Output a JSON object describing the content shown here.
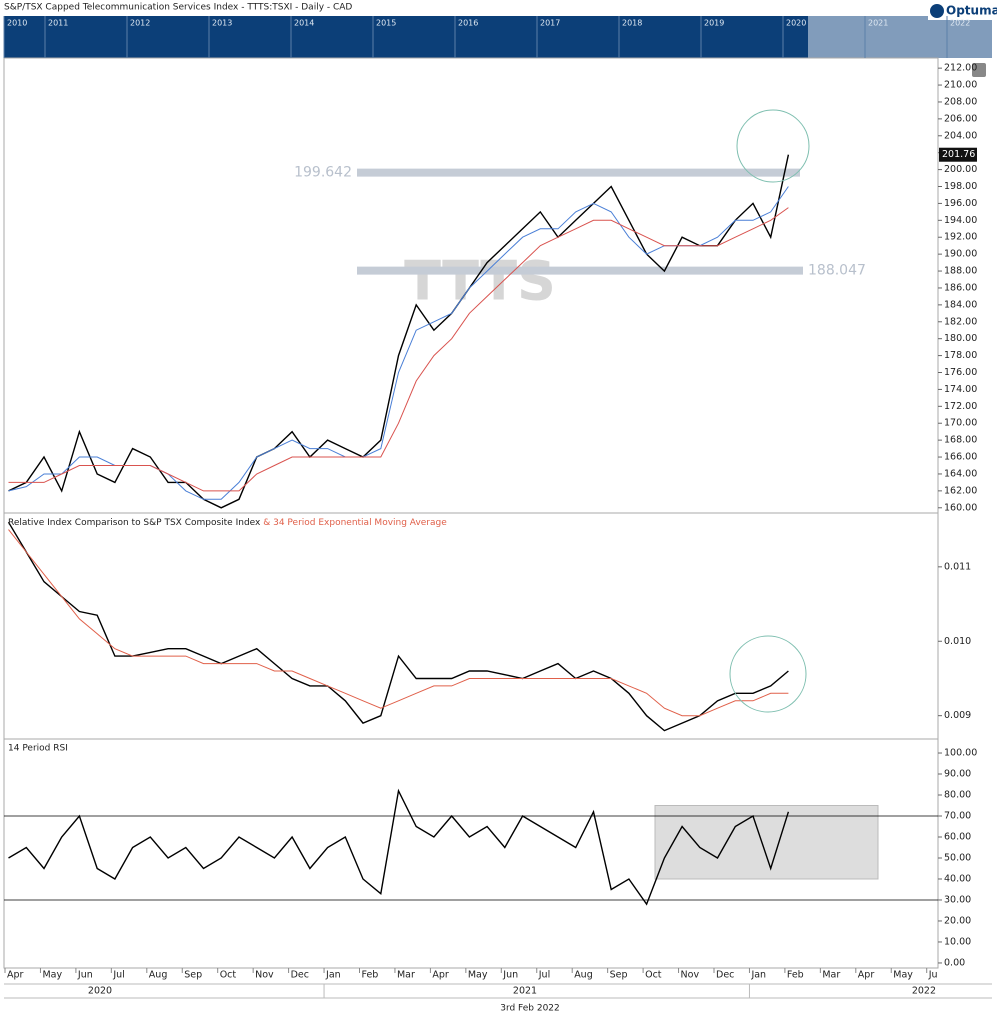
{
  "header": {
    "title": "S&P/TSX Capped Telecommunication Services Index  - TTTS:TSXI - Daily - CAD",
    "brand": "Optuma"
  },
  "navigator": {
    "years": [
      "2010",
      "2011",
      "2012",
      "2013",
      "2014",
      "2015",
      "2016",
      "2017",
      "2018",
      "2019",
      "2020",
      "2021",
      "2022"
    ]
  },
  "time_axis": {
    "months": [
      "Apr",
      "May",
      "Jun",
      "Jul",
      "Aug",
      "Sep",
      "Oct",
      "Nov",
      "Dec",
      "Jan",
      "Feb",
      "Mar",
      "Apr",
      "May",
      "Jun",
      "Jul",
      "Aug",
      "Sep",
      "Oct",
      "Nov",
      "Dec",
      "Jan",
      "Feb",
      "Mar",
      "Apr",
      "May",
      "Ju"
    ],
    "years": [
      "2020",
      "2021",
      "2022"
    ],
    "date": "3rd Feb 2022"
  },
  "chart_data": [
    {
      "type": "line",
      "watermark": "TTTS",
      "ylim": [
        159.5,
        213.2
      ],
      "yticks": [
        {
          "value": 160,
          "label": "160.00"
        },
        {
          "value": 162,
          "label": "162.00"
        },
        {
          "value": 164,
          "label": "164.00"
        },
        {
          "value": 166,
          "label": "166.00"
        },
        {
          "value": 168,
          "label": "168.00"
        },
        {
          "value": 170,
          "label": "170.00"
        },
        {
          "value": 172,
          "label": "172.00"
        },
        {
          "value": 174,
          "label": "174.00"
        },
        {
          "value": 176,
          "label": "176.00"
        },
        {
          "value": 178,
          "label": "178.00"
        },
        {
          "value": 180,
          "label": "180.00"
        },
        {
          "value": 182,
          "label": "182.00"
        },
        {
          "value": 184,
          "label": "184.00"
        },
        {
          "value": 186,
          "label": "186.00"
        },
        {
          "value": 188,
          "label": "188.00"
        },
        {
          "value": 190,
          "label": "190.00"
        },
        {
          "value": 192,
          "label": "192.00"
        },
        {
          "value": 194,
          "label": "194.00"
        },
        {
          "value": 196,
          "label": "196.00"
        },
        {
          "value": 198,
          "label": "198.00"
        },
        {
          "value": 200,
          "label": "200.00"
        },
        {
          "value": 202,
          "label": "202.00"
        },
        {
          "value": 204,
          "label": "204.00"
        },
        {
          "value": 206,
          "label": "206.00"
        },
        {
          "value": 208,
          "label": "208.00"
        },
        {
          "value": 210,
          "label": "210.00"
        },
        {
          "value": 212,
          "label": "212.00"
        }
      ],
      "levels": [
        199.642,
        188.047
      ],
      "series": [
        {
          "color": "#000000",
          "values": [
            162,
            163,
            166,
            162,
            169,
            164,
            163,
            167,
            166,
            163,
            163,
            161,
            160,
            161,
            166,
            167,
            169,
            166,
            168,
            167,
            166,
            168,
            178,
            184,
            181,
            183,
            186,
            189,
            191,
            193,
            195,
            192,
            194,
            196,
            198,
            194,
            190,
            188,
            192,
            191,
            191,
            194,
            196,
            192,
            201.76
          ]
        },
        {
          "color": "#4a7fd6",
          "values": [
            162,
            162.5,
            164,
            164,
            166,
            166,
            165,
            165,
            165,
            164,
            162,
            161,
            161,
            163,
            166,
            167,
            168,
            167,
            167,
            166,
            166,
            167,
            176,
            181,
            182,
            183,
            186,
            188,
            190,
            192,
            193,
            193,
            195,
            196,
            195,
            192,
            190,
            191,
            191,
            191,
            192,
            194,
            194,
            195,
            198
          ]
        },
        {
          "color": "#d9534f",
          "values": [
            163,
            163,
            163,
            164,
            165,
            165,
            165,
            165,
            165,
            164,
            163,
            162,
            162,
            162,
            164,
            165,
            166,
            166,
            166,
            166,
            166,
            166,
            170,
            175,
            178,
            180,
            183,
            185,
            187,
            189,
            191,
            192,
            193,
            194,
            194,
            193,
            192,
            191,
            191,
            191,
            191,
            192,
            193,
            194,
            195.5
          ]
        }
      ]
    },
    {
      "type": "line",
      "ylim": [
        0.0087,
        0.01171
      ],
      "yticks": [
        0.009,
        {
          "value": 0.01,
          "label": "0.010"
        },
        0.011
      ],
      "series": [
        {
          "name": "Relative Index Comparison to S&P TSX Composite Index",
          "color": "#000000",
          "values": [
            0.0116,
            0.0112,
            0.0108,
            0.0106,
            0.0104,
            0.01035,
            0.0098,
            0.0098,
            0.00985,
            0.0099,
            0.0099,
            0.0098,
            0.0097,
            0.0098,
            0.0099,
            0.0097,
            0.0095,
            0.0094,
            0.0094,
            0.0092,
            0.0089,
            0.009,
            0.0098,
            0.0095,
            0.0095,
            0.0095,
            0.0096,
            0.0096,
            0.00955,
            0.0095,
            0.0096,
            0.0097,
            0.0095,
            0.0096,
            0.0095,
            0.0093,
            0.009,
            0.0088,
            0.0089,
            0.009,
            0.0092,
            0.0093,
            0.0093,
            0.0094,
            0.0096
          ]
        },
        {
          "name": " & 34 Period Exponential Moving Average",
          "color": "#e0604a",
          "values": [
            0.0115,
            0.0112,
            0.0109,
            0.0106,
            0.0103,
            0.0101,
            0.0099,
            0.0098,
            0.0098,
            0.0098,
            0.0098,
            0.0097,
            0.0097,
            0.0097,
            0.0097,
            0.0096,
            0.0096,
            0.0095,
            0.0094,
            0.0093,
            0.0092,
            0.0091,
            0.0092,
            0.0093,
            0.0094,
            0.0094,
            0.0095,
            0.0095,
            0.0095,
            0.0095,
            0.0095,
            0.0095,
            0.0095,
            0.0095,
            0.0095,
            0.0094,
            0.0093,
            0.0091,
            0.009,
            0.009,
            0.0091,
            0.0092,
            0.0092,
            0.0093,
            0.0093
          ]
        }
      ]
    },
    {
      "type": "line",
      "title": "14 Period RSI",
      "ylim": [
        -2.4,
        106.2
      ],
      "yticks": [
        {
          "value": 0,
          "label": "0.00"
        },
        {
          "value": 10,
          "label": "10.00"
        },
        {
          "value": 20,
          "label": "20.00"
        },
        {
          "value": 30,
          "label": "30.00"
        },
        {
          "value": 40,
          "label": "40.00"
        },
        {
          "value": 50,
          "label": "50.00"
        },
        {
          "value": 60,
          "label": "60.00"
        },
        {
          "value": 70,
          "label": "70.00"
        },
        {
          "value": 80,
          "label": "80.00"
        },
        {
          "value": 90,
          "label": "90.00"
        },
        {
          "value": 100,
          "label": "100.00"
        }
      ],
      "reference_lines": [
        70,
        30
      ],
      "shaded_range": [
        40,
        75
      ],
      "series": [
        {
          "color": "#000000",
          "values": [
            50,
            55,
            45,
            60,
            70,
            45,
            40,
            55,
            60,
            50,
            55,
            45,
            50,
            60,
            55,
            50,
            60,
            45,
            55,
            60,
            40,
            33,
            82,
            65,
            60,
            70,
            60,
            65,
            55,
            70,
            65,
            60,
            55,
            72,
            35,
            40,
            28,
            50,
            65,
            55,
            50,
            65,
            70,
            45,
            72
          ]
        }
      ]
    }
  ]
}
